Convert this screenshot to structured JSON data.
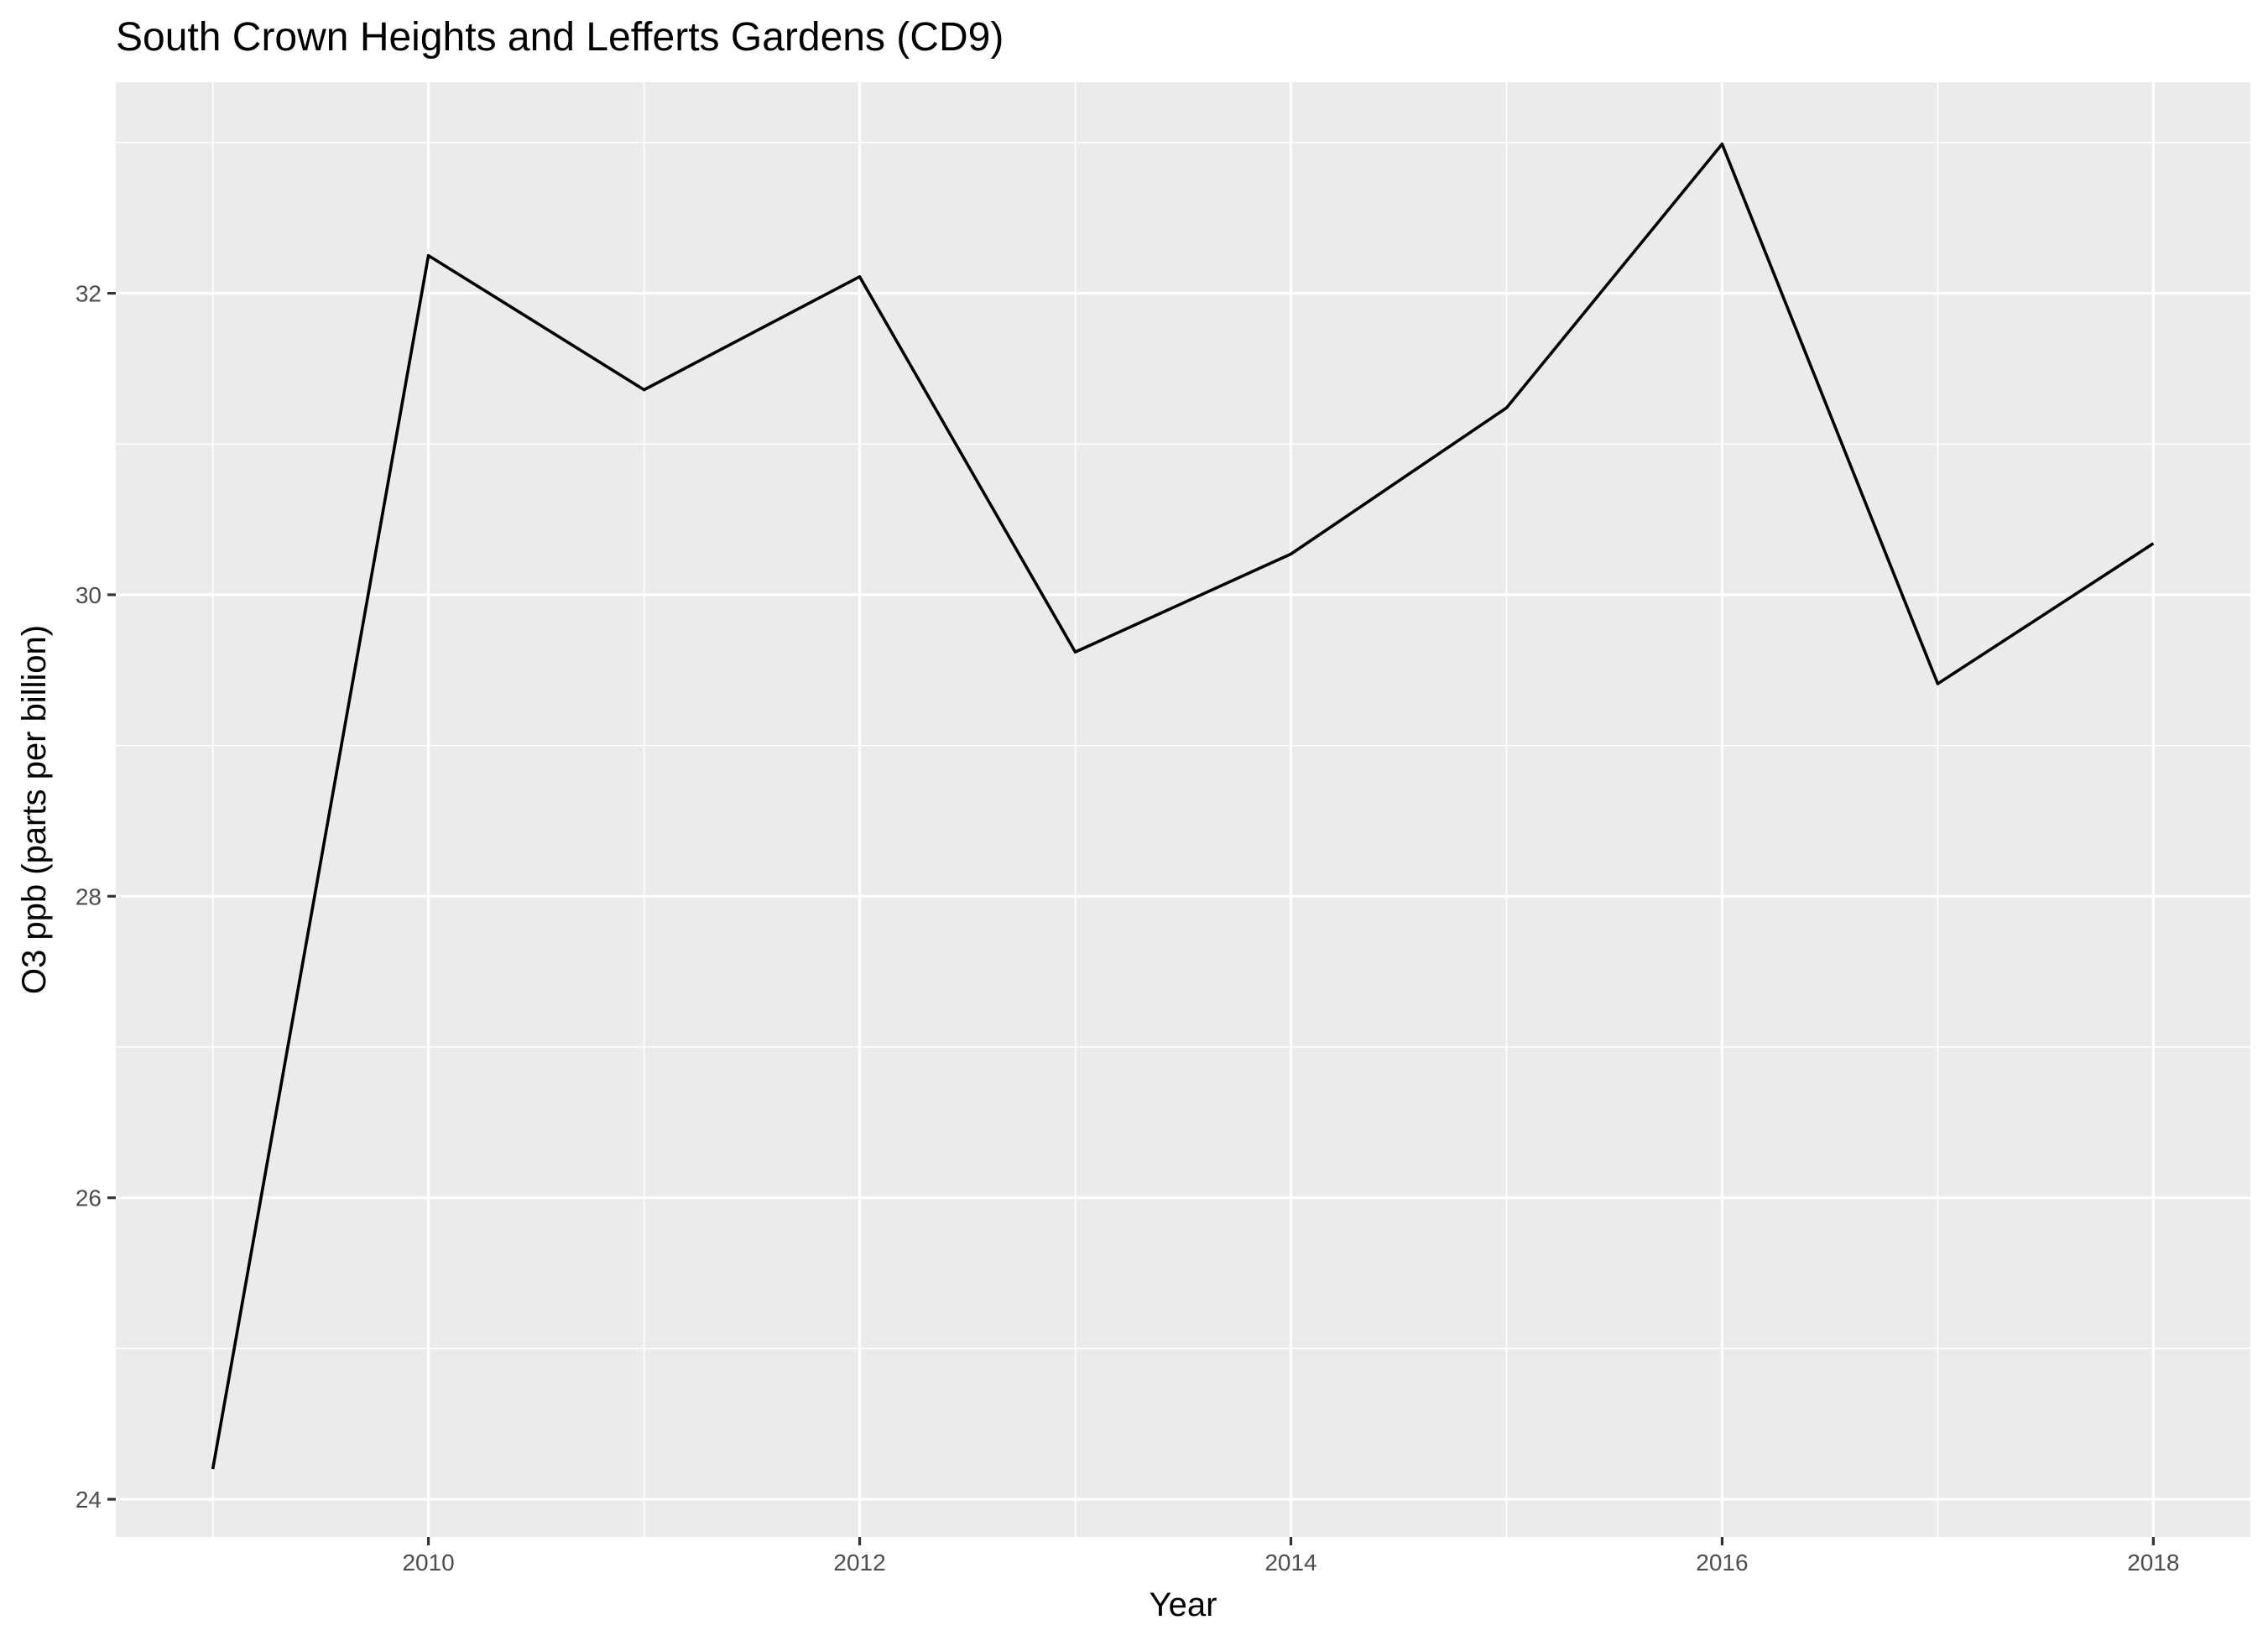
{
  "chart_data": {
    "type": "line",
    "title": "South Crown Heights and Lefferts Gardens (CD9)",
    "xlabel": "Year",
    "ylabel": "O3 ppb (parts per billion)",
    "x": [
      2009,
      2010,
      2011,
      2012,
      2013,
      2014,
      2015,
      2016,
      2017,
      2018
    ],
    "series": [
      {
        "values": [
          24.2,
          32.25,
          31.36,
          32.11,
          29.62,
          30.27,
          31.24,
          32.99,
          29.41,
          30.34
        ],
        "color": "#000000"
      }
    ],
    "xlim": [
      2008.55,
      2018.45
    ],
    "ylim": [
      23.75,
      33.4
    ],
    "x_ticks": [
      2010,
      2012,
      2014,
      2016,
      2018
    ],
    "x_tick_labels": [
      "2010",
      "2012",
      "2014",
      "2016",
      "2018"
    ],
    "y_ticks": [
      24,
      26,
      28,
      30,
      32
    ],
    "y_tick_labels": [
      "24",
      "26",
      "28",
      "30",
      "32"
    ],
    "grid": true,
    "legend": "none",
    "colors": {
      "panel_background": "#ebebeb",
      "grid": "#ffffff",
      "tick_label": "#4d4d4d",
      "tick_mark": "#333333",
      "text": "#000000"
    }
  }
}
